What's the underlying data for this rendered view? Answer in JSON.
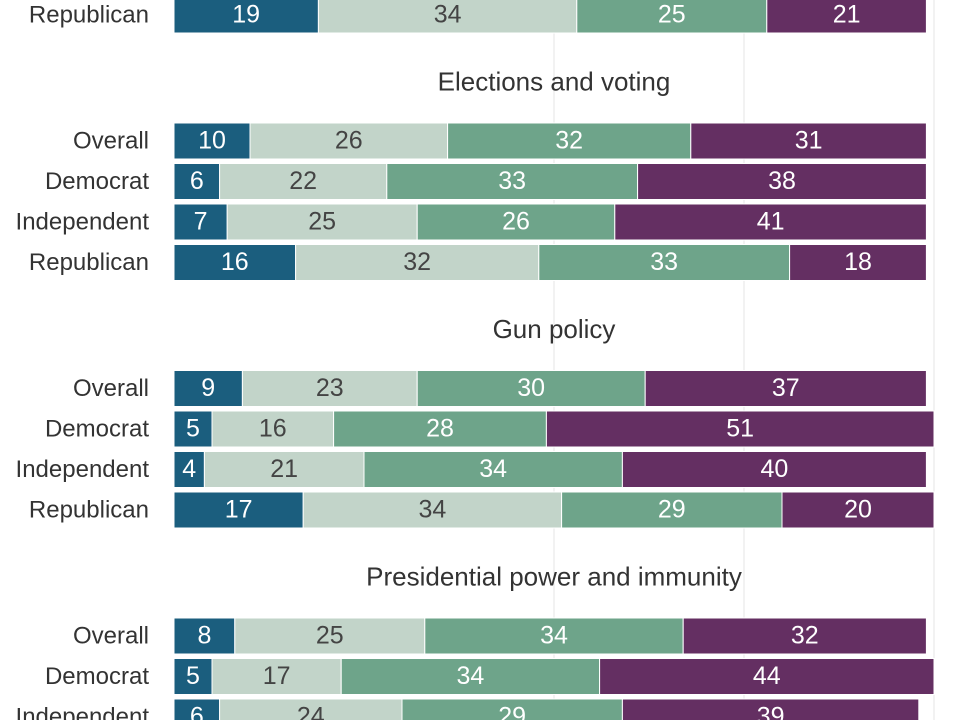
{
  "chart_data": {
    "type": "bar",
    "orientation": "horizontal",
    "stacked": true,
    "xlim": [
      0,
      100
    ],
    "grid": true,
    "segment_colors": [
      "#1b5e7e",
      "#c2d4c9",
      "#6ea48a",
      "#642f62"
    ],
    "segment_text_colors": [
      "#ffffff",
      "#444444",
      "#ffffff",
      "#ffffff"
    ],
    "groups": [
      {
        "title": "",
        "rows": [
          {
            "label": "Republican",
            "values": [
              19,
              34,
              25,
              21
            ]
          }
        ]
      },
      {
        "title": "Elections and voting",
        "rows": [
          {
            "label": "Overall",
            "values": [
              10,
              26,
              32,
              31
            ]
          },
          {
            "label": "Democrat",
            "values": [
              6,
              22,
              33,
              38
            ]
          },
          {
            "label": "Independent",
            "values": [
              7,
              25,
              26,
              41
            ]
          },
          {
            "label": "Republican",
            "values": [
              16,
              32,
              33,
              18
            ]
          }
        ]
      },
      {
        "title": "Gun policy",
        "rows": [
          {
            "label": "Overall",
            "values": [
              9,
              23,
              30,
              37
            ]
          },
          {
            "label": "Democrat",
            "values": [
              5,
              16,
              28,
              51
            ]
          },
          {
            "label": "Independent",
            "values": [
              4,
              21,
              34,
              40
            ]
          },
          {
            "label": "Republican",
            "values": [
              17,
              34,
              29,
              20
            ]
          }
        ]
      },
      {
        "title": "Presidential power and immunity",
        "rows": [
          {
            "label": "Overall",
            "values": [
              8,
              25,
              34,
              32
            ]
          },
          {
            "label": "Democrat",
            "values": [
              5,
              17,
              34,
              44
            ]
          },
          {
            "label": "Independent",
            "values": [
              6,
              24,
              29,
              39
            ]
          }
        ]
      }
    ]
  }
}
